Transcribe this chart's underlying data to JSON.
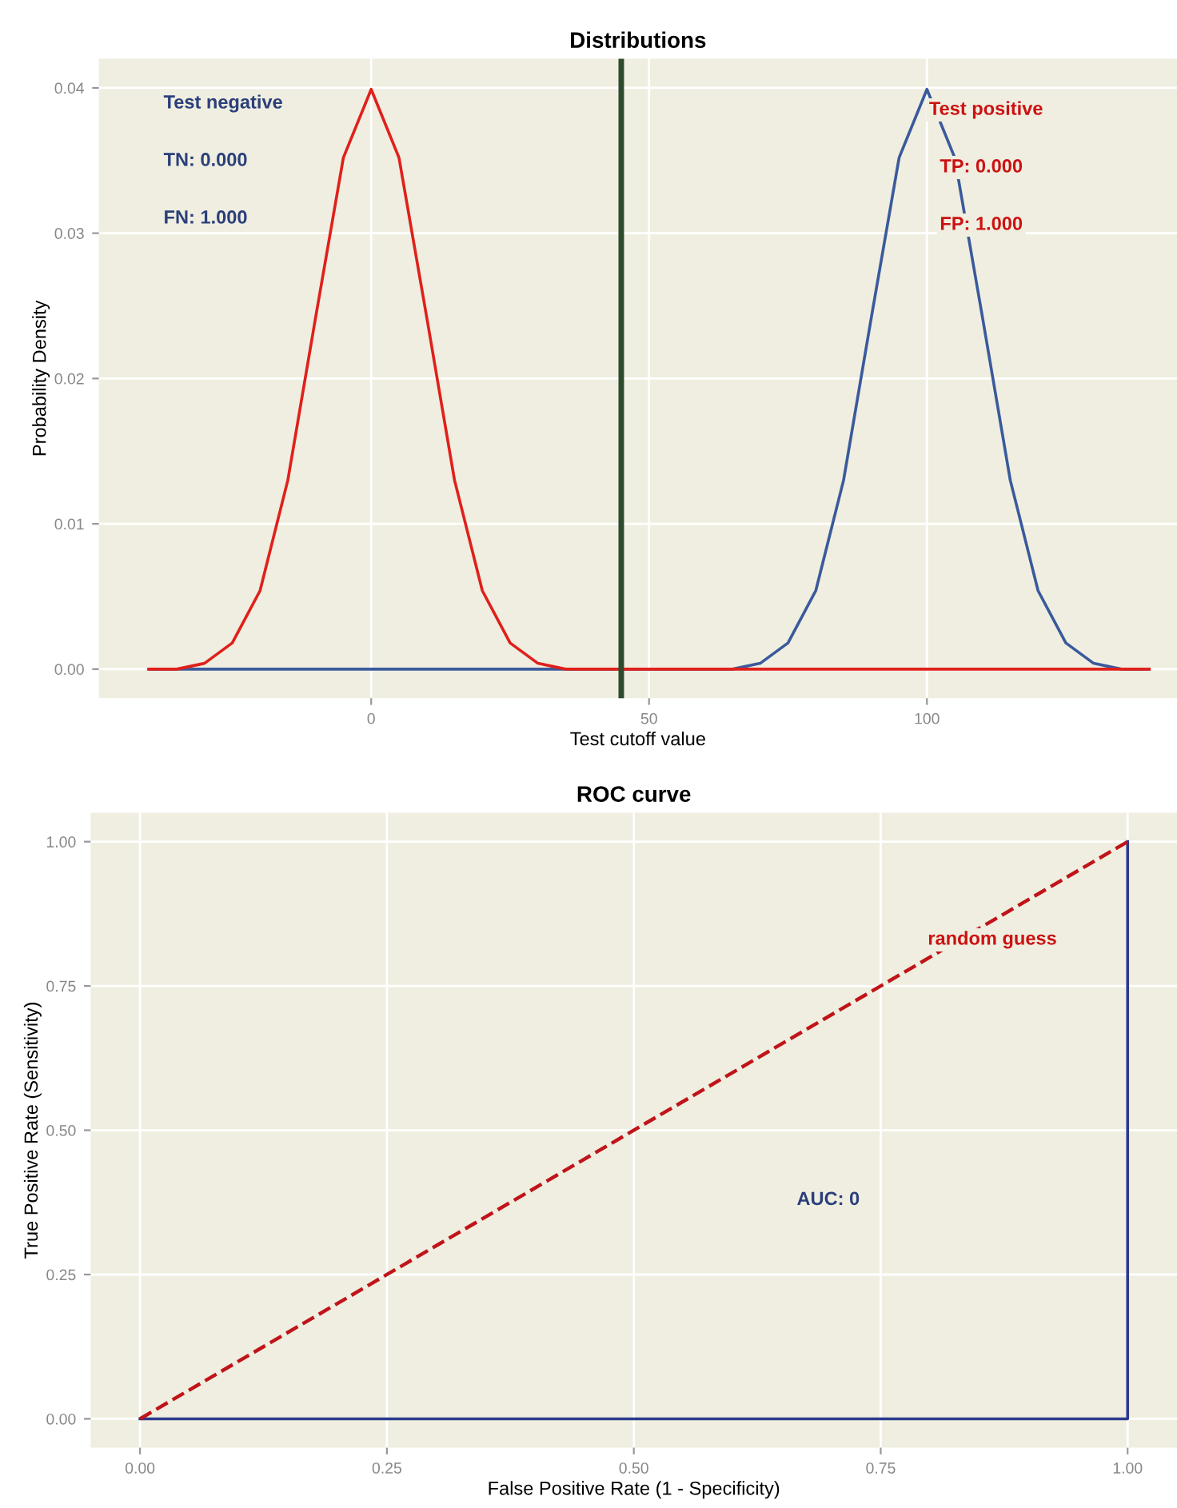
{
  "chart_data": [
    {
      "type": "line",
      "title": "Distributions",
      "xlabel": "Test cutoff value",
      "ylabel": "Probability Density",
      "x": [
        -40,
        -35,
        -30,
        -25,
        -20,
        -15,
        -10,
        -5,
        0,
        5,
        10,
        15,
        20,
        25,
        30,
        35,
        40,
        45,
        50,
        55,
        60,
        65,
        70,
        75,
        80,
        85,
        90,
        95,
        100,
        105,
        110,
        115,
        120,
        125,
        130,
        135,
        140
      ],
      "series": [
        {
          "color": "#3a5a9c",
          "values": [
            0,
            0,
            0,
            0,
            0,
            0,
            0,
            0,
            0,
            0,
            0,
            0,
            0,
            0,
            0,
            0,
            0,
            0,
            0,
            0,
            0,
            0,
            0.0004,
            0.0018,
            0.0054,
            0.013,
            0.0242,
            0.0352,
            0.0399,
            0.0352,
            0.0242,
            0.013,
            0.0054,
            0.0018,
            0.0004,
            0,
            0
          ]
        },
        {
          "color": "#e0201b",
          "values": [
            0,
            0,
            0.0004,
            0.0018,
            0.0054,
            0.013,
            0.0242,
            0.0352,
            0.0399,
            0.0352,
            0.0242,
            0.013,
            0.0054,
            0.0018,
            0.0004,
            0,
            0,
            0,
            0,
            0,
            0,
            0,
            0,
            0,
            0,
            0,
            0,
            0,
            0,
            0,
            0,
            0,
            0,
            0,
            0,
            0,
            0
          ]
        }
      ],
      "xlim": [
        -49,
        145
      ],
      "ylim": [
        -0.002,
        0.042
      ],
      "xticks": [
        0,
        50,
        100
      ],
      "yticks": [
        {
          "value": 0,
          "label": "0.00"
        },
        {
          "value": 0.01,
          "label": "0.01"
        },
        {
          "value": 0.02,
          "label": "0.02"
        },
        {
          "value": 0.03,
          "label": "0.03"
        },
        {
          "value": 0.04,
          "label": "0.04"
        }
      ],
      "ref_lines": [
        {
          "axis": "x",
          "value": 45,
          "color": "#2d4a2d"
        }
      ],
      "annotations": [
        "Test negative",
        "TN: 0.000",
        "FN: 1.000",
        "Test positive",
        "TP: 0.000",
        "FP: 1.000"
      ],
      "grid": true
    },
    {
      "type": "line",
      "title": "ROC curve",
      "xlabel": "False Positive Rate (1 - Specificity)",
      "ylabel": "True Positive Rate (Sensitivity)",
      "x": [
        0,
        1,
        1
      ],
      "series": [
        {
          "color": "#2b3a8c",
          "values": [
            0,
            0,
            1
          ],
          "line_style": "solid"
        },
        {
          "color": "#c0141a",
          "values": [
            0,
            1,
            1
          ],
          "line_style": "dashed"
        }
      ],
      "xlim": [
        -0.05,
        1.05
      ],
      "ylim": [
        -0.05,
        1.05
      ],
      "xticks": [
        {
          "value": 0,
          "label": "0.00"
        },
        {
          "value": 0.25,
          "label": "0.25"
        },
        {
          "value": 0.5,
          "label": "0.50"
        },
        {
          "value": 0.75,
          "label": "0.75"
        },
        {
          "value": 1,
          "label": "1.00"
        }
      ],
      "yticks": [
        {
          "value": 0,
          "label": "0.00"
        },
        {
          "value": 0.25,
          "label": "0.25"
        },
        {
          "value": 0.5,
          "label": "0.50"
        },
        {
          "value": 0.75,
          "label": "0.75"
        },
        {
          "value": 1,
          "label": "1.00"
        }
      ],
      "annotations": [
        "random guess",
        "AUC: 0"
      ],
      "grid": true
    }
  ]
}
